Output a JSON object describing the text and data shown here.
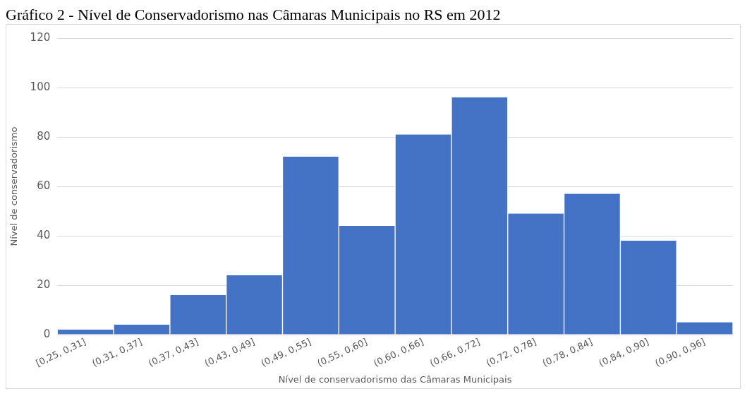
{
  "chart_data": {
    "type": "bar",
    "title": "Gráfico 2 - Nível de Conservadorismo nas Câmaras Municipais no RS em 2012",
    "categories": [
      "[0,25, 0,31]",
      "(0,31, 0,37]",
      "(0,37, 0,43]",
      "(0,43, 0,49]",
      "(0,49, 0,55]",
      "(0,55, 0,60]",
      "(0,60, 0,66]",
      "(0,66, 0,72]",
      "(0,72, 0,78]",
      "(0,78, 0,84]",
      "(0,84, 0,90]",
      "(0,90, 0,96]"
    ],
    "values": [
      2,
      4,
      16,
      24,
      72,
      44,
      81,
      96,
      49,
      57,
      38,
      5
    ],
    "color": "#4472c4",
    "xlabel": "Nível de conservadorismo das Câmaras Municipais",
    "ylabel": "Nível de conservadorismo",
    "ylim": [
      0,
      120
    ],
    "yticks": [
      0,
      20,
      40,
      60,
      80,
      100,
      120
    ],
    "grid": "y",
    "legend": false
  }
}
